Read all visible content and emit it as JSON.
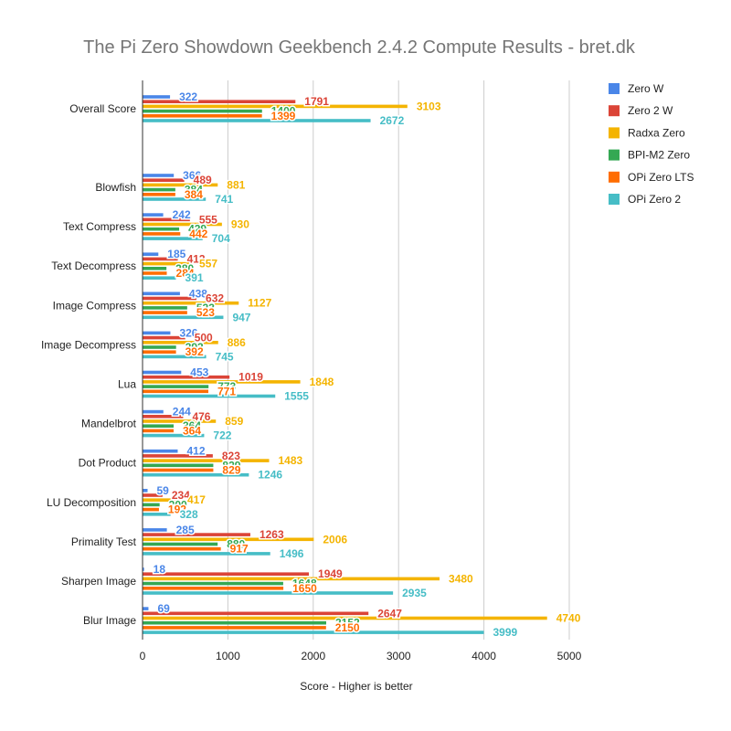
{
  "chart_data": {
    "type": "bar",
    "orientation": "horizontal",
    "title": "The Pi Zero Showdown Geekbench 2.4.2 Compute Results - bret.dk",
    "xlabel": "Score - Higher is better",
    "ylabel": "",
    "xlim": [
      0,
      5000
    ],
    "xticks": [
      0,
      1000,
      2000,
      3000,
      4000,
      5000
    ],
    "grid": true,
    "legend_position": "right",
    "categories": [
      "Overall Score",
      "Blowfish",
      "Text Compress",
      "Text Decompress",
      "Image Compress",
      "Image Decompress",
      "Lua",
      "Mandelbrot",
      "Dot Product",
      "LU Decomposition",
      "Primality Test",
      "Sharpen Image",
      "Blur Image"
    ],
    "series": [
      {
        "name": "Zero W",
        "color": "#4a86e8",
        "values": [
          322,
          366,
          242,
          185,
          438,
          326,
          453,
          244,
          412,
          59,
          285,
          18,
          69
        ]
      },
      {
        "name": "Zero 2 W",
        "color": "#db4437",
        "values": [
          1791,
          489,
          555,
          413,
          632,
          500,
          1019,
          476,
          823,
          234,
          1263,
          1949,
          2647
        ]
      },
      {
        "name": "Radxa Zero",
        "color": "#f4b400",
        "values": [
          3103,
          881,
          930,
          557,
          1127,
          886,
          1848,
          859,
          1483,
          417,
          2006,
          3480,
          4740
        ]
      },
      {
        "name": "BPI-M2 Zero",
        "color": "#34a853",
        "values": [
          1400,
          384,
          429,
          280,
          523,
          393,
          773,
          364,
          829,
          200,
          880,
          1648,
          2152
        ]
      },
      {
        "name": "OPi Zero LTS",
        "color": "#ff6d01",
        "values": [
          1399,
          384,
          442,
          284,
          523,
          392,
          771,
          364,
          829,
          192,
          917,
          1650,
          2150
        ]
      },
      {
        "name": "OPi Zero 2",
        "color": "#46bdc6",
        "values": [
          2672,
          741,
          704,
          391,
          947,
          745,
          1555,
          722,
          1246,
          328,
          1496,
          2935,
          3999
        ]
      }
    ]
  }
}
